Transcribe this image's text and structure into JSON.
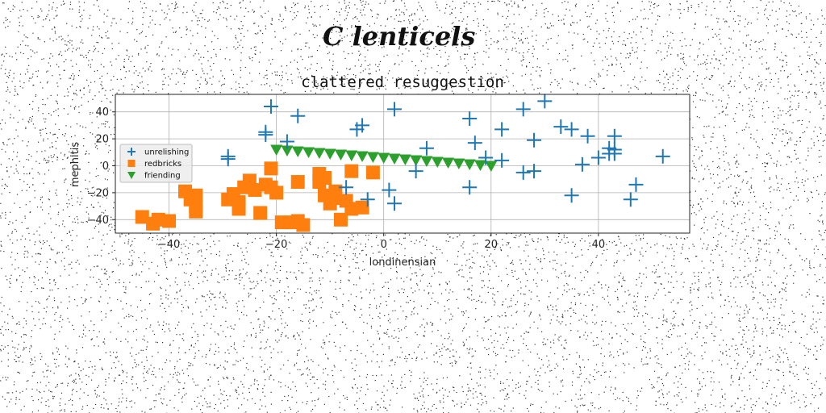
{
  "figure": {
    "suptitle": "C lenticels"
  },
  "colors": {
    "unrelishing": "#1f77b4",
    "redbricks": "#ff7f0e",
    "friending": "#2ca02c",
    "grid": "#b0b0b0"
  },
  "chart_data": {
    "type": "scatter",
    "title": "clattered resuggestion",
    "xlabel": "londinensian",
    "ylabel": "mephitis",
    "xlim": [
      -50,
      57
    ],
    "ylim": [
      -50,
      53
    ],
    "xticks": [
      -40,
      -20,
      0,
      20,
      40
    ],
    "yticks": [
      -40,
      -20,
      0,
      20,
      40
    ],
    "grid": true,
    "legend_position": "center-left",
    "series": [
      {
        "name": "unrelishing",
        "marker": "plus",
        "color": "#1f77b4",
        "points": [
          [
            -21,
            44
          ],
          [
            -16,
            37
          ],
          [
            -22,
            25
          ],
          [
            -22,
            23
          ],
          [
            -29,
            5
          ],
          [
            -29,
            7
          ],
          [
            -18,
            18
          ],
          [
            -5,
            27
          ],
          [
            -4,
            30
          ],
          [
            -7,
            -16
          ],
          [
            -3,
            -25
          ],
          [
            1,
            -18
          ],
          [
            2,
            -28
          ],
          [
            2,
            42
          ],
          [
            6,
            -4
          ],
          [
            8,
            13
          ],
          [
            16,
            35
          ],
          [
            17,
            17
          ],
          [
            16,
            -16
          ],
          [
            19,
            6
          ],
          [
            22,
            27
          ],
          [
            22,
            4
          ],
          [
            26,
            42
          ],
          [
            26,
            -5
          ],
          [
            28,
            19
          ],
          [
            28,
            -4
          ],
          [
            30,
            48
          ],
          [
            33,
            29
          ],
          [
            35,
            27
          ],
          [
            35,
            -22
          ],
          [
            37,
            1
          ],
          [
            38,
            22
          ],
          [
            40,
            6
          ],
          [
            42,
            13
          ],
          [
            42,
            9
          ],
          [
            43,
            22
          ],
          [
            43,
            9
          ],
          [
            43,
            12
          ],
          [
            46,
            -25
          ],
          [
            47,
            -14
          ],
          [
            52,
            7
          ]
        ]
      },
      {
        "name": "redbricks",
        "marker": "square",
        "color": "#ff7f0e",
        "points": [
          [
            -45,
            -38
          ],
          [
            -43,
            -43
          ],
          [
            -42,
            -40
          ],
          [
            -40,
            -41
          ],
          [
            -37,
            -19
          ],
          [
            -36,
            -25
          ],
          [
            -35,
            -22
          ],
          [
            -35,
            -34
          ],
          [
            -35,
            -30
          ],
          [
            -29,
            -25
          ],
          [
            -28,
            -21
          ],
          [
            -27,
            -27
          ],
          [
            -27,
            -32
          ],
          [
            -26,
            -16
          ],
          [
            -25,
            -11
          ],
          [
            -24,
            -18
          ],
          [
            -23,
            -35
          ],
          [
            -22,
            -14
          ],
          [
            -21,
            -16
          ],
          [
            -21,
            -2
          ],
          [
            -20,
            -20
          ],
          [
            -19,
            -42
          ],
          [
            -17,
            -42
          ],
          [
            -16,
            -41
          ],
          [
            -15,
            -44
          ],
          [
            -16,
            -12
          ],
          [
            -12,
            -6
          ],
          [
            -12,
            -12
          ],
          [
            -11,
            -22
          ],
          [
            -11,
            -9
          ],
          [
            -10,
            -28
          ],
          [
            -9,
            -19
          ],
          [
            -9,
            -24
          ],
          [
            -8,
            -40
          ],
          [
            -7,
            -26
          ],
          [
            -6,
            -4
          ],
          [
            -6,
            -32
          ],
          [
            -4,
            -31
          ],
          [
            -2,
            -5
          ]
        ]
      },
      {
        "name": "friending",
        "marker": "triangle-down",
        "color": "#2ca02c",
        "points": [
          [
            -20.0,
            12.0
          ],
          [
            -18.0,
            11.4
          ],
          [
            -16.0,
            10.8
          ],
          [
            -14.0,
            10.2
          ],
          [
            -12.0,
            9.6
          ],
          [
            -10.0,
            9.0
          ],
          [
            -8.0,
            8.4
          ],
          [
            -6.0,
            7.8
          ],
          [
            -4.0,
            7.2
          ],
          [
            -2.0,
            6.6
          ],
          [
            0.0,
            6.0
          ],
          [
            2.0,
            5.4
          ],
          [
            4.0,
            4.8
          ],
          [
            6.0,
            4.2
          ],
          [
            8.0,
            3.6
          ],
          [
            10.0,
            3.0
          ],
          [
            12.0,
            2.4
          ],
          [
            14.0,
            1.8
          ],
          [
            16.0,
            1.2
          ],
          [
            18.0,
            0.6
          ],
          [
            20.0,
            0.0
          ]
        ]
      }
    ]
  }
}
